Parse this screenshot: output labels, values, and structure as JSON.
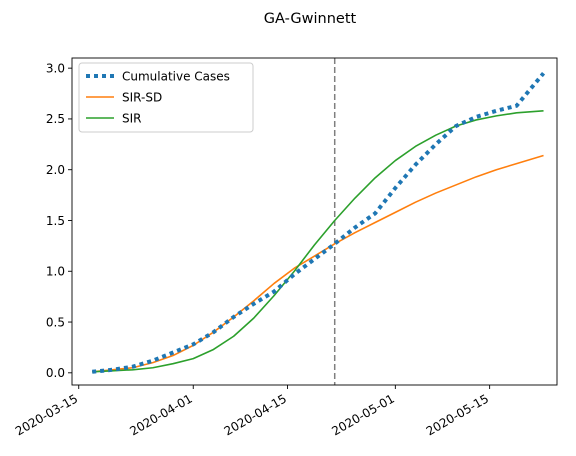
{
  "chart_data": {
    "type": "line",
    "title": "GA-Gwinnett",
    "xlabel": "",
    "ylabel": "",
    "x_type": "date",
    "xlim": [
      "2020-03-14",
      "2020-05-25"
    ],
    "ylim": [
      -0.12,
      3.1
    ],
    "x_ticks": [
      "2020-03-15",
      "2020-04-01",
      "2020-04-15",
      "2020-05-01",
      "2020-05-15"
    ],
    "y_ticks": [
      0.0,
      0.5,
      1.0,
      1.5,
      2.0,
      2.5,
      3.0
    ],
    "y_tick_labels": [
      "0.0",
      "0.5",
      "1.0",
      "1.5",
      "2.0",
      "2.5",
      "3.0"
    ],
    "grid": false,
    "legend_position": "upper-left",
    "vertical_line": {
      "x": "2020-04-22",
      "color": "#7f7f7f",
      "style": "dashed"
    },
    "series": [
      {
        "name": "Cumulative Cases",
        "color": "#1f77b4",
        "style": "dotted",
        "x": [
          "2020-03-17",
          "2020-03-20",
          "2020-03-23",
          "2020-03-26",
          "2020-03-29",
          "2020-04-01",
          "2020-04-04",
          "2020-04-07",
          "2020-04-10",
          "2020-04-13",
          "2020-04-16",
          "2020-04-19",
          "2020-04-22",
          "2020-04-25",
          "2020-04-28",
          "2020-05-01",
          "2020-05-04",
          "2020-05-07",
          "2020-05-10",
          "2020-05-13",
          "2020-05-16",
          "2020-05-19",
          "2020-05-23"
        ],
        "y": [
          0.01,
          0.03,
          0.06,
          0.12,
          0.2,
          0.28,
          0.4,
          0.55,
          0.68,
          0.8,
          0.97,
          1.12,
          1.27,
          1.43,
          1.57,
          1.82,
          2.05,
          2.25,
          2.43,
          2.52,
          2.58,
          2.63,
          2.95
        ]
      },
      {
        "name": "SIR-SD",
        "color": "#ff7f0e",
        "style": "solid",
        "x": [
          "2020-03-17",
          "2020-03-20",
          "2020-03-23",
          "2020-03-26",
          "2020-03-29",
          "2020-04-01",
          "2020-04-04",
          "2020-04-07",
          "2020-04-10",
          "2020-04-13",
          "2020-04-16",
          "2020-04-19",
          "2020-04-22",
          "2020-04-25",
          "2020-04-28",
          "2020-05-01",
          "2020-05-04",
          "2020-05-07",
          "2020-05-10",
          "2020-05-13",
          "2020-05-16",
          "2020-05-19",
          "2020-05-23"
        ],
        "y": [
          0.01,
          0.03,
          0.05,
          0.1,
          0.17,
          0.27,
          0.4,
          0.55,
          0.71,
          0.88,
          1.03,
          1.15,
          1.27,
          1.38,
          1.48,
          1.58,
          1.68,
          1.77,
          1.85,
          1.93,
          2.0,
          2.06,
          2.14
        ]
      },
      {
        "name": "SIR",
        "color": "#2ca02c",
        "style": "solid",
        "x": [
          "2020-03-17",
          "2020-03-20",
          "2020-03-23",
          "2020-03-26",
          "2020-03-29",
          "2020-04-01",
          "2020-04-04",
          "2020-04-07",
          "2020-04-10",
          "2020-04-13",
          "2020-04-16",
          "2020-04-19",
          "2020-04-22",
          "2020-04-25",
          "2020-04-28",
          "2020-05-01",
          "2020-05-04",
          "2020-05-07",
          "2020-05-10",
          "2020-05-13",
          "2020-05-16",
          "2020-05-19",
          "2020-05-23"
        ],
        "y": [
          0.01,
          0.02,
          0.03,
          0.05,
          0.09,
          0.14,
          0.23,
          0.36,
          0.54,
          0.76,
          1.0,
          1.26,
          1.5,
          1.72,
          1.92,
          2.09,
          2.23,
          2.34,
          2.43,
          2.49,
          2.53,
          2.56,
          2.58
        ]
      }
    ]
  }
}
